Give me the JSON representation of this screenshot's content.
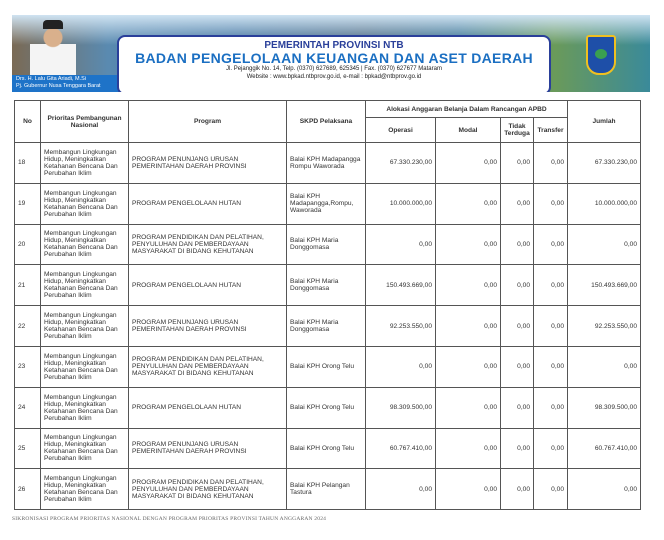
{
  "header": {
    "title_small": "PEMERINTAH PROVINSI NTB",
    "title_main": "BADAN PENGELOLAAN KEUANGAN DAN ASET DAERAH",
    "address": "Jl. Pejanggik No. 14, Telp. (0370) 627689, 625345 | Fax. (0370) 627677 Mataram",
    "website": "Website : www.bpkad.ntbprov.go.id, e-mail : bpkad@ntbprov.go.id",
    "person_name": "Drs. H. Lalu Gita Ariadi, M.Si",
    "person_title": "Pj. Gubernur Nusa Tenggara Barat"
  },
  "table": {
    "headers": {
      "no": "No",
      "prioritas": "Prioritas Pembangunan Nasional",
      "program": "Program",
      "skpd": "SKPD Pelaksana",
      "alokasi": "Alokasi Anggaran Belanja Dalam Rancangan APBD",
      "operasi": "Operasi",
      "modal": "Modal",
      "tidak_terduga": "Tidak Terduga",
      "transfer": "Transfer",
      "jumlah": "Jumlah"
    },
    "rows": [
      {
        "no": "18",
        "prioritas": "Membangun Lingkungan Hidup, Meningkatkan Ketahanan Bencana Dan Perubahan Iklim",
        "program": "PROGRAM PENUNJANG URUSAN PEMERINTAHAN DAERAH PROVINSI",
        "skpd": "Balai KPH Madapangga Rompu Waworada",
        "operasi": "67.330.230,00",
        "modal": "0,00",
        "tidak_terduga": "0,00",
        "transfer": "0,00",
        "jumlah": "67.330.230,00"
      },
      {
        "no": "19",
        "prioritas": "Membangun Lingkungan Hidup, Meningkatkan Ketahanan Bencana Dan Perubahan Iklim",
        "program": "PROGRAM PENGELOLAAN HUTAN",
        "skpd": "Balai KPH Madapangga,Rompu, Waworada",
        "operasi": "10.000.000,00",
        "modal": "0,00",
        "tidak_terduga": "0,00",
        "transfer": "0,00",
        "jumlah": "10.000.000,00"
      },
      {
        "no": "20",
        "prioritas": "Membangun Lingkungan Hidup, Meningkatkan Ketahanan Bencana Dan Perubahan Iklim",
        "program": "PROGRAM PENDIDIKAN DAN PELATIHAN, PENYULUHAN DAN PEMBERDAYAAN MASYARAKAT DI BIDANG KEHUTANAN",
        "skpd": "Balai KPH Maria Donggomasa",
        "operasi": "0,00",
        "modal": "0,00",
        "tidak_terduga": "0,00",
        "transfer": "0,00",
        "jumlah": "0,00"
      },
      {
        "no": "21",
        "prioritas": "Membangun Lingkungan Hidup, Meningkatkan Ketahanan Bencana Dan Perubahan Iklim",
        "program": "PROGRAM PENGELOLAAN HUTAN",
        "skpd": "Balai KPH Maria Donggomasa",
        "operasi": "150.493.669,00",
        "modal": "0,00",
        "tidak_terduga": "0,00",
        "transfer": "0,00",
        "jumlah": "150.493.669,00"
      },
      {
        "no": "22",
        "prioritas": "Membangun Lingkungan Hidup, Meningkatkan Ketahanan Bencana Dan Perubahan Iklim",
        "program": "PROGRAM PENUNJANG URUSAN PEMERINTAHAN DAERAH PROVINSI",
        "skpd": "Balai KPH Maria Donggomasa",
        "operasi": "92.253.550,00",
        "modal": "0,00",
        "tidak_terduga": "0,00",
        "transfer": "0,00",
        "jumlah": "92.253.550,00"
      },
      {
        "no": "23",
        "prioritas": "Membangun Lingkungan Hidup, Meningkatkan Ketahanan Bencana Dan Perubahan Iklim",
        "program": "PROGRAM PENDIDIKAN DAN PELATIHAN, PENYULUHAN DAN PEMBERDAYAAN MASYARAKAT DI BIDANG KEHUTANAN",
        "skpd": "Balai KPH Orong Telu",
        "operasi": "0,00",
        "modal": "0,00",
        "tidak_terduga": "0,00",
        "transfer": "0,00",
        "jumlah": "0,00"
      },
      {
        "no": "24",
        "prioritas": "Membangun Lingkungan Hidup, Meningkatkan Ketahanan Bencana Dan Perubahan Iklim",
        "program": "PROGRAM PENGELOLAAN HUTAN",
        "skpd": "Balai KPH Orong Telu",
        "operasi": "98.309.500,00",
        "modal": "0,00",
        "tidak_terduga": "0,00",
        "transfer": "0,00",
        "jumlah": "98.309.500,00"
      },
      {
        "no": "25",
        "prioritas": "Membangun Lingkungan Hidup, Meningkatkan Ketahanan Bencana Dan Perubahan Iklim",
        "program": "PROGRAM PENUNJANG URUSAN PEMERINTAHAN DAERAH PROVINSI",
        "skpd": "Balai KPH Orong Telu",
        "operasi": "60.767.410,00",
        "modal": "0,00",
        "tidak_terduga": "0,00",
        "transfer": "0,00",
        "jumlah": "60.767.410,00"
      },
      {
        "no": "26",
        "prioritas": "Membangun Lingkungan Hidup, Meningkatkan Ketahanan Bencana Dan Perubahan Iklim",
        "program": "PROGRAM PENDIDIKAN DAN PELATIHAN, PENYULUHAN DAN PEMBERDAYAAN MASYARAKAT DI BIDANG KEHUTANAN",
        "skpd": "Balai KPH Pelangan Tastura",
        "operasi": "0,00",
        "modal": "0,00",
        "tidak_terduga": "0,00",
        "transfer": "0,00",
        "jumlah": "0,00"
      }
    ]
  },
  "footer": "SIKRONISASI PROGRAM PRIORITAS NASIONAL DENGAN PROGRAM PRIORITAS PROVINSI TAHUN ANGGARAN 2024"
}
